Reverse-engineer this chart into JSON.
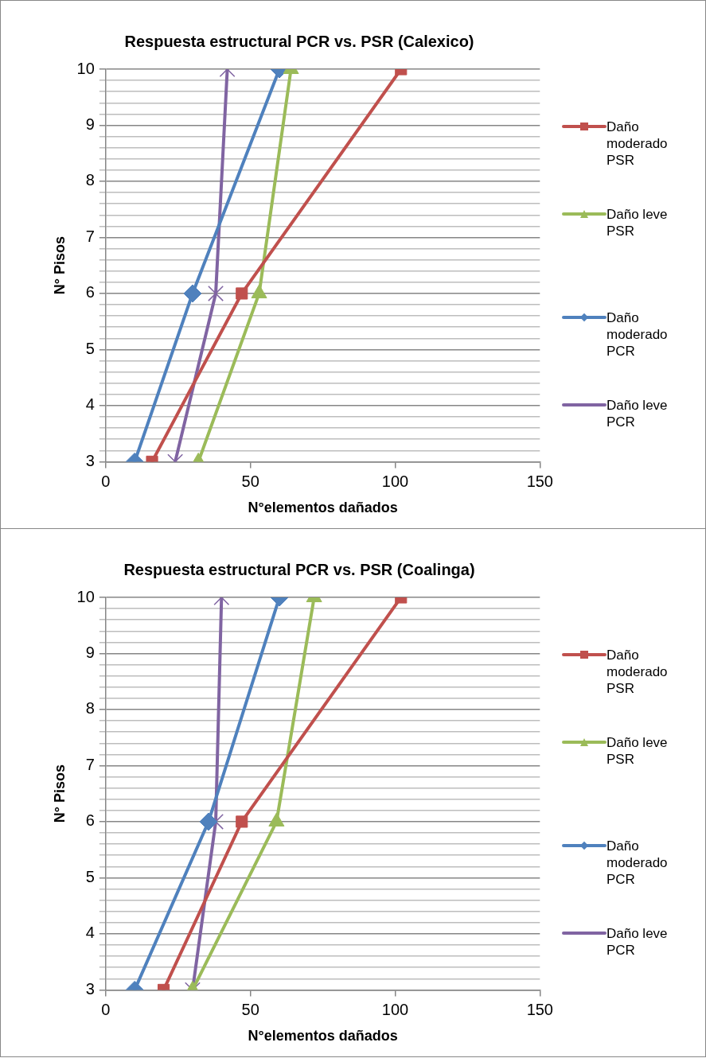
{
  "chart_data": [
    {
      "type": "line",
      "title": "Respuesta estructural PCR vs. PSR (Calexico)",
      "xlabel": "N°elementos dañados",
      "ylabel": "N° Pisos",
      "xlim": [
        0,
        150
      ],
      "xticks": [
        0,
        50,
        100,
        150
      ],
      "ylim": [
        3,
        10
      ],
      "yticks": [
        3,
        {
          "value": 3.2,
          "label": null
        },
        {
          "value": 3.4,
          "label": null
        },
        {
          "value": 3.6,
          "label": null
        },
        {
          "value": 3.8,
          "label": null
        },
        4,
        {
          "value": 4.2,
          "label": null
        },
        {
          "value": 4.4,
          "label": null
        },
        {
          "value": 4.6,
          "label": null
        },
        {
          "value": 4.8,
          "label": null
        },
        5,
        {
          "value": 5.2,
          "label": null
        },
        {
          "value": 5.4,
          "label": null
        },
        {
          "value": 5.6,
          "label": null
        },
        {
          "value": 5.8,
          "label": null
        },
        6,
        {
          "value": 6.2,
          "label": null
        },
        {
          "value": 6.4,
          "label": null
        },
        {
          "value": 6.6,
          "label": null
        },
        {
          "value": 6.8,
          "label": null
        },
        7,
        {
          "value": 7.2,
          "label": null
        },
        {
          "value": 7.4,
          "label": null
        },
        {
          "value": 7.6,
          "label": null
        },
        {
          "value": 7.8,
          "label": null
        },
        8,
        {
          "value": 8.2,
          "label": null
        },
        {
          "value": 8.4,
          "label": null
        },
        {
          "value": 8.6,
          "label": null
        },
        {
          "value": 8.8,
          "label": null
        },
        9,
        {
          "value": 9.2,
          "label": null
        },
        {
          "value": 9.4,
          "label": null
        },
        {
          "value": 9.6,
          "label": null
        },
        {
          "value": 9.8,
          "label": null
        },
        10
      ],
      "grid": "y",
      "legend": "right",
      "series": [
        {
          "name": "Daño moderado PSR",
          "color": "#c0504d",
          "marker": "square",
          "x": [
            16,
            47,
            102
          ],
          "values": [
            3,
            6,
            10
          ]
        },
        {
          "name": "Daño leve PSR",
          "color": "#9bbb59",
          "marker": "triangle",
          "x": [
            32,
            53,
            64
          ],
          "values": [
            3,
            6,
            10
          ]
        },
        {
          "name": "Daño moderado PCR",
          "color": "#4f81bd",
          "marker": "diamond",
          "x": [
            10,
            30,
            60
          ],
          "values": [
            3,
            6,
            10
          ]
        },
        {
          "name": "Daño leve PCR",
          "color": "#8064a2",
          "marker": "cross",
          "x": [
            24,
            38,
            42
          ],
          "values": [
            3,
            6,
            10
          ]
        }
      ]
    },
    {
      "type": "line",
      "title": "Respuesta estructural PCR vs. PSR (Coalinga)",
      "xlabel": "N°elementos dañados",
      "ylabel": "N° Pisos",
      "xlim": [
        0,
        150
      ],
      "xticks": [
        0,
        50,
        100,
        150
      ],
      "ylim": [
        3,
        10
      ],
      "yticks": [
        3,
        {
          "value": 3.2,
          "label": null
        },
        {
          "value": 3.4,
          "label": null
        },
        {
          "value": 3.6,
          "label": null
        },
        {
          "value": 3.8,
          "label": null
        },
        4,
        {
          "value": 4.2,
          "label": null
        },
        {
          "value": 4.4,
          "label": null
        },
        {
          "value": 4.6,
          "label": null
        },
        {
          "value": 4.8,
          "label": null
        },
        5,
        {
          "value": 5.2,
          "label": null
        },
        {
          "value": 5.4,
          "label": null
        },
        {
          "value": 5.6,
          "label": null
        },
        {
          "value": 5.8,
          "label": null
        },
        6,
        {
          "value": 6.2,
          "label": null
        },
        {
          "value": 6.4,
          "label": null
        },
        {
          "value": 6.6,
          "label": null
        },
        {
          "value": 6.8,
          "label": null
        },
        7,
        {
          "value": 7.2,
          "label": null
        },
        {
          "value": 7.4,
          "label": null
        },
        {
          "value": 7.6,
          "label": null
        },
        {
          "value": 7.8,
          "label": null
        },
        8,
        {
          "value": 8.2,
          "label": null
        },
        {
          "value": 8.4,
          "label": null
        },
        {
          "value": 8.6,
          "label": null
        },
        {
          "value": 8.8,
          "label": null
        },
        9,
        {
          "value": 9.2,
          "label": null
        },
        {
          "value": 9.4,
          "label": null
        },
        {
          "value": 9.6,
          "label": null
        },
        {
          "value": 9.8,
          "label": null
        },
        10
      ],
      "grid": "y",
      "legend": "right",
      "series": [
        {
          "name": "Daño moderado PSR",
          "color": "#c0504d",
          "marker": "square",
          "x": [
            20,
            47,
            102
          ],
          "values": [
            3,
            6,
            10
          ]
        },
        {
          "name": "Daño leve PSR",
          "color": "#9bbb59",
          "marker": "triangle",
          "x": [
            30,
            59,
            72
          ],
          "values": [
            3,
            6,
            10
          ]
        },
        {
          "name": "Daño moderado PCR",
          "color": "#4f81bd",
          "marker": "diamond",
          "x": [
            10,
            35.5,
            60
          ],
          "values": [
            3,
            6,
            10
          ]
        },
        {
          "name": "Daño leve PCR",
          "color": "#8064a2",
          "marker": "cross",
          "x": [
            30,
            38,
            40
          ],
          "values": [
            3,
            6,
            10
          ]
        }
      ]
    }
  ]
}
